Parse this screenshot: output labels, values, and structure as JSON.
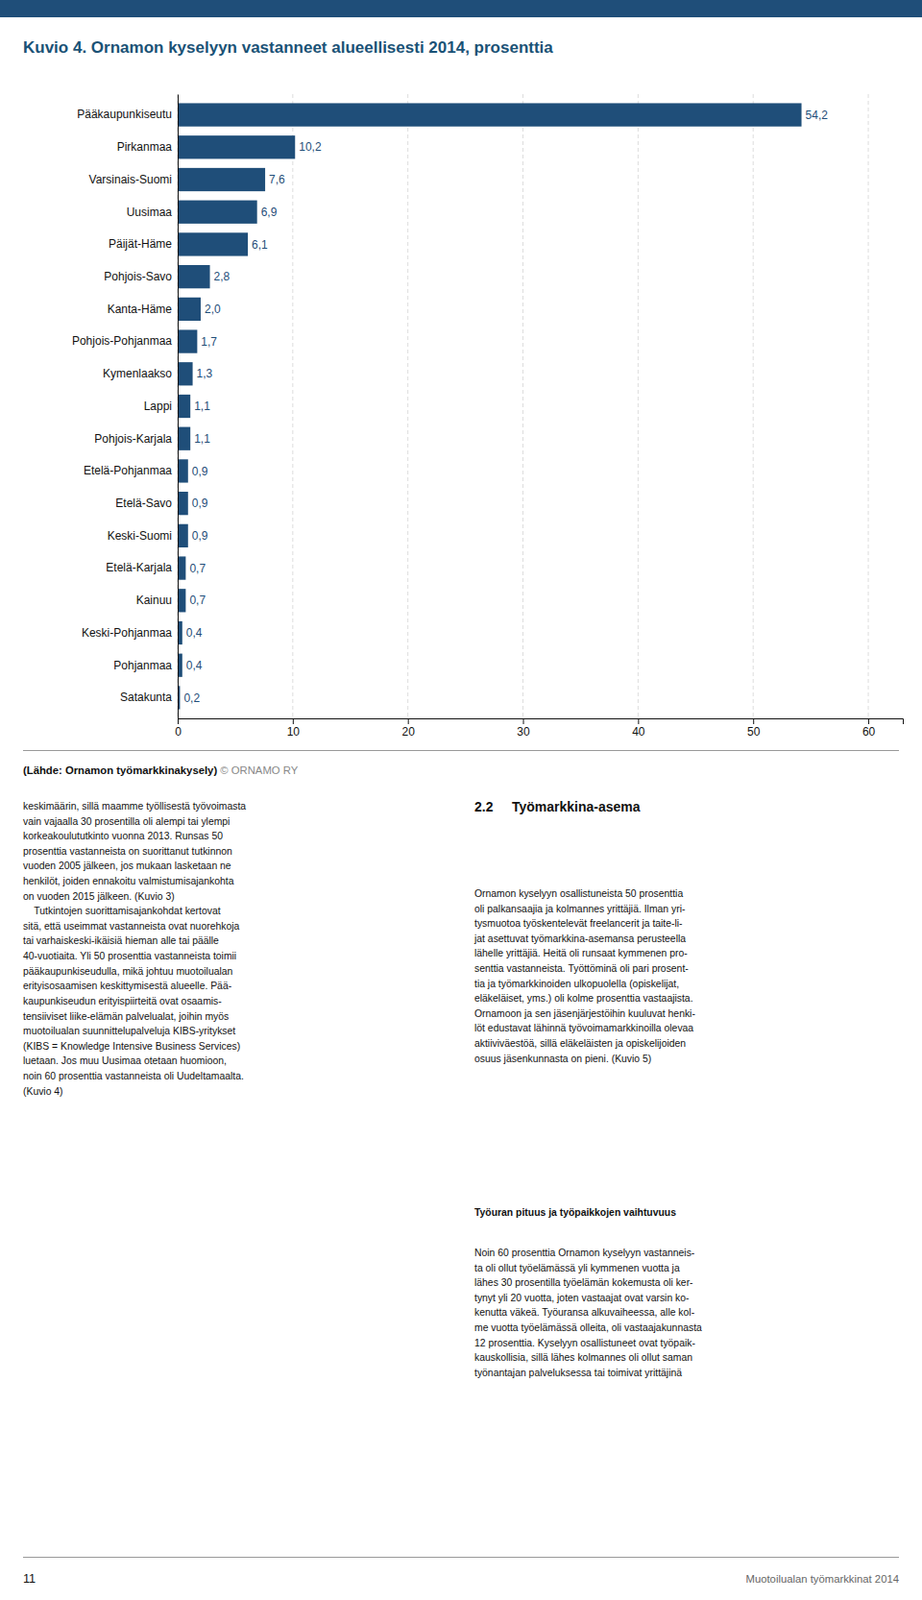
{
  "chart_data": {
    "type": "bar",
    "orientation": "horizontal",
    "title": "Kuvio 4. Ornamon kyselyyn vastanneet alueellisesti 2014, prosenttia",
    "categories": [
      "Pääkaupunkiseutu",
      "Pirkanmaa",
      "Varsinais-Suomi",
      "Uusimaa",
      "Päijät-Häme",
      "Pohjois-Savo",
      "Kanta-Häme",
      "Pohjois-Pohjanmaa",
      "Kymenlaakso",
      "Lappi",
      "Pohjois-Karjala",
      "Etelä-Pohjanmaa",
      "Etelä-Savo",
      "Keski-Suomi",
      "Etelä-Karjala",
      "Kainuu",
      "Keski-Pohjanmaa",
      "Pohjanmaa",
      "Satakunta"
    ],
    "values": [
      54.2,
      10.2,
      7.6,
      6.9,
      6.1,
      2.8,
      2.0,
      1.7,
      1.3,
      1.1,
      1.1,
      0.9,
      0.9,
      0.9,
      0.7,
      0.7,
      0.4,
      0.4,
      0.2
    ],
    "value_labels": [
      "54,2",
      "10,2",
      "7,6",
      "6,9",
      "6,1",
      "2,8",
      "2,0",
      "1,7",
      "1,3",
      "1,1",
      "1,1",
      "0,9",
      "0,9",
      "0,9",
      "0,7",
      "0,7",
      "0,4",
      "0,4",
      "0,2"
    ],
    "color": "#1f4e79",
    "xlim": [
      0,
      63
    ],
    "xticks": [
      0,
      10,
      20,
      30,
      40,
      50,
      60
    ],
    "grid": true,
    "data_labels": true
  },
  "source_bold": "(Lähde: Ornamon työmarkkinakysely)",
  "source_light": " © ORNAMO RY",
  "section_title": "2.2     Työmarkkina-asema",
  "body_left": "keskimäärin, sillä maamme työllisestä työvoimasta\nvain vajaalla 30 prosentilla oli alempi tai ylempi\nkorkeakoulututkinto vuonna 2013. Runsas 50\nprosenttia vastanneista on suorittanut tutkinnon\nvuoden 2005 jälkeen, jos mukaan lasketaan ne\nhenkilöt, joiden ennakoitu valmistumisajankohta\non vuoden 2015 jälkeen. (Kuvio 3)\n    Tutkintojen suorittamisajankohdat kertovat\nsitä, että useimmat vastanneista ovat nuorehkoja\ntai varhaiskeski-ikäisiä hieman alle tai päälle\n40-vuotiaita. Yli 50 prosenttia vastanneista toimii\npääkaupunkiseudulla, mikä johtuu muotoilualan\nerityisosaamisen keskittymisestä alueelle. Pää-\nkaupunkiseudun erityispiirteitä ovat osaamis-\ntensiiviset liike-elämän palvelualat, joihin myös\nmuotoilualan suunnittelupalveluja KIBS-yritykset\n(KIBS = Knowledge Intensive Business Services)\nluetaan. Jos muu Uusimaa otetaan huomioon,\nnoin 60 prosenttia vastanneista oli Uudeltamaalta.\n(Kuvio 4)",
  "body_right_p1": "Ornamon kyselyyn osallistuneista 50 prosenttia\noli palkansaajia ja kolmannes yrittäjiä. Ilman yri-\ntysmuotoa työskentelevät freelancerit ja taite-li-\njat asettuvat työmarkkina-asemansa perusteella\nlähelle yrittäjiä. Heitä oli runsaat kymmenen pro-\nsenttia vastanneista. Työttöminä oli pari prosent-\ntia ja työmarkkinoiden ulkopuolella (opiskelijat,\neläkeläiset, yms.) oli kolme prosenttia vastaajista.\nOrnamoon ja sen jäsenjärjestöihin kuuluvat henki-\nlöt edustavat lähinnä työvoimamarkkinoilla olevaa\naktiiviväestöä, sillä eläkeläisten ja opiskelijoiden\nosuus jäsenkunnasta on pieni. (Kuvio 5)",
  "body_right_sub": "Työuran pituus ja työpaikkojen vaihtuvuus",
  "body_right_p2": "Noin 60 prosenttia Ornamon kyselyyn vastanneis-\nta oli ollut työelämässä yli kymmenen vuotta ja\nlähes 30 prosentilla työelämän kokemusta oli ker-\ntynyt yli 20 vuotta, joten vastaajat ovat varsin ko-\nkenutta väkeä. Työuransa alkuvaiheessa, alle kol-\nme vuotta työelämässä olleita, oli vastaajakunnasta\n12 prosenttia. Kyselyyn osallistuneet ovat työpaik-\nkauskollisia, sillä lähes kolmannes oli ollut saman\ntyönantajan palveluksessa tai toimivat yrittäjinä",
  "footer_left": "11",
  "footer_right": "Muotoilualan työmarkkinat 2014"
}
